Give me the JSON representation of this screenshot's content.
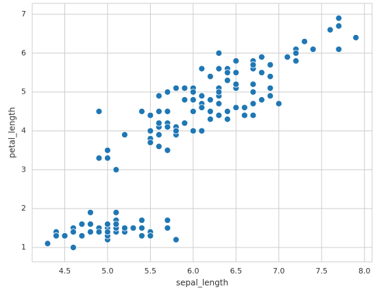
{
  "chart_data": {
    "type": "scatter",
    "x_label": "sepal_length",
    "y_label": "petal_length",
    "color": "#1f77b4",
    "grid": true,
    "xlim": [
      4.12,
      8.09
    ],
    "ylim": [
      0.63,
      7.28
    ],
    "xticks": [
      4.5,
      {
        "value": 5,
        "label": "5.0"
      },
      5.5,
      {
        "value": 6,
        "label": "6.0"
      },
      6.5,
      {
        "value": 7,
        "label": "7.0"
      },
      7.5,
      {
        "value": 8,
        "label": "8.0"
      }
    ],
    "yticks": [
      1,
      2,
      3,
      4,
      5,
      6,
      7
    ],
    "x": [
      5.1,
      4.9,
      4.7,
      4.6,
      5.0,
      5.4,
      4.6,
      5.0,
      4.4,
      4.9,
      5.4,
      4.8,
      4.8,
      4.3,
      5.8,
      5.7,
      5.4,
      5.1,
      5.7,
      5.1,
      5.4,
      5.1,
      4.6,
      5.1,
      4.8,
      5.0,
      5.0,
      5.2,
      5.2,
      4.7,
      4.8,
      5.4,
      5.2,
      5.5,
      4.9,
      5.0,
      5.5,
      4.9,
      4.4,
      5.1,
      5.0,
      4.5,
      4.4,
      5.0,
      5.1,
      4.8,
      5.1,
      4.6,
      5.3,
      5.0,
      7.0,
      6.4,
      6.9,
      5.5,
      6.5,
      5.7,
      6.3,
      4.9,
      6.6,
      5.2,
      5.0,
      5.9,
      6.0,
      6.1,
      5.6,
      6.7,
      5.6,
      5.8,
      6.2,
      5.6,
      5.9,
      6.1,
      6.3,
      6.1,
      6.4,
      6.6,
      6.8,
      6.7,
      6.0,
      5.7,
      5.5,
      5.5,
      5.8,
      6.0,
      5.4,
      6.0,
      6.7,
      6.3,
      5.6,
      5.5,
      5.5,
      6.1,
      5.8,
      5.0,
      5.6,
      5.7,
      5.7,
      6.2,
      5.1,
      5.7,
      6.3,
      5.8,
      7.1,
      6.3,
      6.5,
      7.6,
      4.9,
      7.3,
      6.7,
      7.2,
      6.5,
      6.4,
      6.8,
      5.7,
      5.8,
      6.4,
      6.5,
      7.7,
      7.7,
      6.0,
      6.9,
      5.6,
      7.7,
      6.3,
      6.7,
      7.2,
      6.2,
      6.1,
      6.4,
      7.2,
      7.4,
      7.9,
      6.4,
      6.3,
      6.1,
      7.7,
      6.3,
      6.4,
      6.0,
      6.9,
      6.7,
      6.9,
      5.8,
      6.8,
      6.7,
      6.7,
      6.3,
      6.5,
      6.2,
      5.9
    ],
    "values": [
      1.4,
      1.4,
      1.3,
      1.5,
      1.4,
      1.7,
      1.4,
      1.5,
      1.4,
      1.5,
      1.5,
      1.6,
      1.4,
      1.1,
      1.2,
      1.5,
      1.3,
      1.4,
      1.7,
      1.5,
      1.7,
      1.5,
      1.0,
      1.7,
      1.9,
      1.6,
      1.6,
      1.5,
      1.4,
      1.6,
      1.6,
      1.5,
      1.5,
      1.4,
      1.5,
      1.2,
      1.3,
      1.4,
      1.3,
      1.5,
      1.3,
      1.3,
      1.3,
      1.6,
      1.9,
      1.4,
      1.6,
      1.4,
      1.5,
      1.4,
      4.7,
      4.5,
      4.9,
      4.0,
      4.6,
      4.5,
      4.7,
      3.3,
      4.6,
      3.9,
      3.5,
      4.2,
      4.0,
      4.7,
      3.6,
      4.4,
      4.5,
      4.1,
      4.5,
      3.9,
      4.8,
      4.0,
      4.9,
      4.7,
      4.3,
      4.4,
      4.8,
      5.0,
      4.5,
      3.5,
      3.8,
      3.7,
      3.9,
      5.1,
      4.5,
      4.5,
      4.7,
      4.4,
      4.1,
      4.0,
      4.4,
      4.6,
      4.0,
      3.3,
      4.2,
      4.2,
      4.2,
      4.3,
      3.0,
      4.1,
      6.0,
      5.1,
      5.9,
      5.6,
      5.8,
      6.6,
      4.5,
      6.3,
      5.8,
      6.1,
      5.1,
      5.3,
      5.5,
      5.0,
      5.1,
      5.3,
      5.5,
      6.7,
      6.9,
      5.0,
      5.7,
      4.9,
      6.7,
      4.9,
      5.7,
      6.0,
      4.8,
      4.9,
      5.6,
      5.8,
      6.1,
      6.4,
      5.6,
      5.1,
      5.6,
      6.1,
      5.6,
      5.5,
      4.8,
      5.4,
      5.6,
      5.1,
      5.1,
      5.9,
      5.7,
      5.2,
      5.0,
      5.2,
      5.4,
      5.1
    ]
  }
}
